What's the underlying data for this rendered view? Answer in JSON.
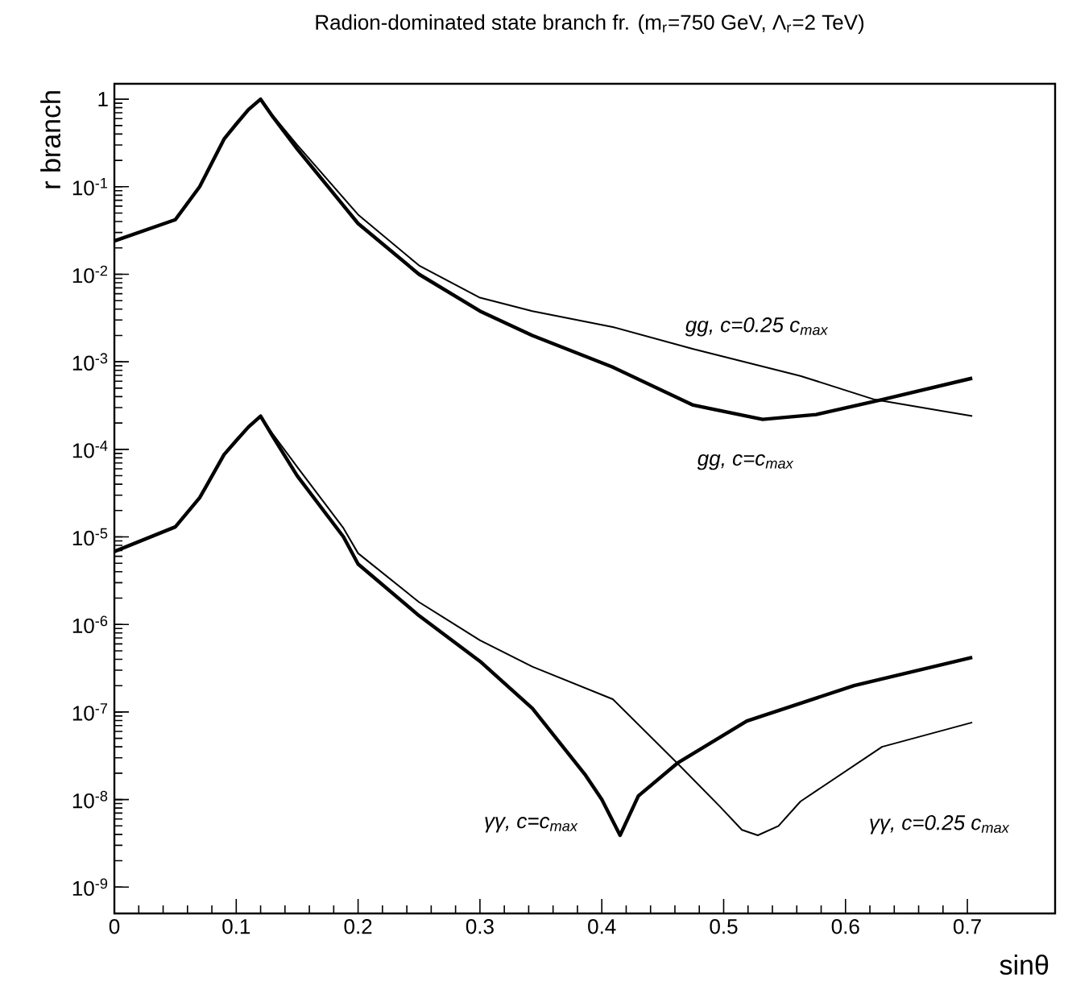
{
  "chart_data": {
    "type": "line",
    "title": "Radion-dominated state branch fr. (m$_{r}$=750 GeV, Λ$_{r}$=2 TeV)",
    "xlabel": "sinθ",
    "ylabel": "r branch",
    "log": "y",
    "marker": "none",
    "line_style": "solid",
    "xlim": [
      0,
      0.772
    ],
    "ylim": [
      5e-10,
      1.5
    ],
    "xticks": [
      0,
      0.1,
      0.2,
      0.3,
      0.4,
      0.5,
      0.6,
      0.7
    ],
    "yticks": [
      {
        "value": 1e-09,
        "label": "10$^{-9}$"
      },
      {
        "value": 1e-08,
        "label": "10$^{-8}$"
      },
      {
        "value": 1e-07,
        "label": "10$^{-7}$"
      },
      {
        "value": 1e-06,
        "label": "10$^{-6}$"
      },
      {
        "value": 1e-05,
        "label": "10$^{-5}$"
      },
      {
        "value": 0.0001,
        "label": "10$^{-4}$"
      },
      {
        "value": 0.001,
        "label": "10$^{-3}$"
      },
      {
        "value": 0.01,
        "label": "10$^{-2}$"
      },
      {
        "value": 0.1,
        "label": "10$^{-1}$"
      },
      1
    ],
    "series": [
      {
        "name": "gg, c=c$_{max}$",
        "color": "#000000",
        "x": [
          0,
          0.05,
          0.07,
          0.09,
          0.1,
          0.11,
          0.12,
          0.13,
          0.15,
          0.2,
          0.25,
          0.3,
          0.343,
          0.409,
          0.475,
          0.532,
          0.576,
          0.63,
          0.704
        ],
        "values": [
          0.024,
          0.042,
          0.1,
          0.35,
          0.52,
          0.76,
          1,
          0.63,
          0.27,
          0.038,
          0.01,
          0.0038,
          0.002,
          0.00087,
          0.00032,
          0.00022,
          0.00025,
          0.00037,
          0.00065
        ]
      },
      {
        "name": "gg, c=0.25 c$_{max}$",
        "color": "#000000",
        "x": [
          0,
          0.05,
          0.07,
          0.09,
          0.1,
          0.11,
          0.12,
          0.13,
          0.15,
          0.2,
          0.25,
          0.3,
          0.343,
          0.409,
          0.475,
          0.563,
          0.624,
          0.704
        ],
        "values": [
          0.024,
          0.042,
          0.1,
          0.35,
          0.52,
          0.76,
          1,
          0.65,
          0.3,
          0.048,
          0.0126,
          0.0054,
          0.0038,
          0.0025,
          0.0014,
          0.00069,
          0.00037,
          0.00024
        ]
      },
      {
        "name": "γγ, c=c$_{max}$",
        "color": "#000000",
        "x": [
          0,
          0.05,
          0.07,
          0.09,
          0.1,
          0.11,
          0.12,
          0.13,
          0.15,
          0.188,
          0.2,
          0.25,
          0.3,
          0.343,
          0.386,
          0.4,
          0.415,
          0.43,
          0.462,
          0.519,
          0.607,
          0.704
        ],
        "values": [
          6.8e-06,
          1.3e-05,
          2.8e-05,
          8.7e-05,
          0.000126,
          0.00018,
          0.00024,
          0.00014,
          5e-05,
          1e-05,
          4.9e-06,
          1.26e-06,
          3.8e-07,
          1.1e-07,
          1.95e-08,
          1e-08,
          3.9e-09,
          1.1e-08,
          2.6e-08,
          7.9e-08,
          2e-07,
          4.2e-07
        ]
      },
      {
        "name": "γγ, c=0.25 c$_{max}$",
        "color": "#000000",
        "x": [
          0,
          0.05,
          0.07,
          0.09,
          0.1,
          0.11,
          0.12,
          0.13,
          0.15,
          0.188,
          0.2,
          0.25,
          0.3,
          0.343,
          0.409,
          0.462,
          0.497,
          0.515,
          0.528,
          0.545,
          0.563,
          0.63,
          0.704
        ],
        "values": [
          6.8e-06,
          1.3e-05,
          2.8e-05,
          8.7e-05,
          0.000126,
          0.00018,
          0.00024,
          0.00015,
          6.3e-05,
          1.26e-05,
          6.5e-06,
          1.8e-06,
          6.6e-07,
          3.3e-07,
          1.4e-07,
          2.6e-08,
          8.3e-09,
          4.5e-09,
          3.9e-09,
          5e-09,
          9.5e-09,
          4e-08,
          7.6e-08
        ]
      }
    ]
  }
}
